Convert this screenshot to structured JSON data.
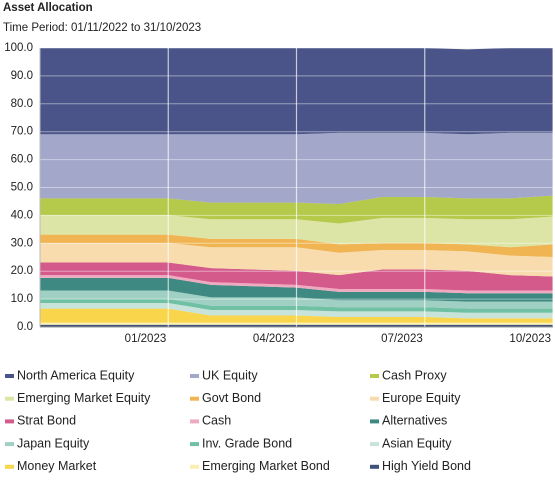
{
  "chart_data": {
    "type": "area",
    "stacked": true,
    "title": "Asset Allocation",
    "subtitle": "Time Period: 01/11/2022 to 31/10/2023",
    "categories": [
      null,
      null,
      null,
      "01/2023",
      null,
      null,
      "04/2023",
      null,
      null,
      "07/2023",
      null,
      null,
      "10/2023"
    ],
    "ylim": [
      0,
      100
    ],
    "yticks": [
      {
        "value": 0,
        "label": "0.0"
      },
      {
        "value": 10,
        "label": "10.0"
      },
      {
        "value": 20,
        "label": "20.0"
      },
      {
        "value": 30,
        "label": "30.0"
      },
      {
        "value": 40,
        "label": "40.0"
      },
      {
        "value": 50,
        "label": "50.0"
      },
      {
        "value": 60,
        "label": "60.0"
      },
      {
        "value": 70,
        "label": "70.0"
      },
      {
        "value": 80,
        "label": "80.0"
      },
      {
        "value": 90,
        "label": "90.0"
      },
      {
        "value": 100,
        "label": "100.0"
      }
    ],
    "grid": true,
    "series": [
      {
        "name": "North America Equity",
        "color": "#4a5488",
        "values": [
          30.9,
          30.9,
          30.9,
          30.9,
          30.9,
          30.9,
          30.9,
          30.4,
          30.4,
          30.4,
          30.4,
          30.4,
          30.4
        ]
      },
      {
        "name": "UK Equity",
        "color": "#a3a7c9",
        "values": [
          23,
          23,
          23,
          23,
          24.5,
          24.5,
          24.5,
          25.5,
          23,
          23,
          23,
          23.5,
          22.5
        ]
      },
      {
        "name": "Cash Proxy",
        "color": "#b5c94a",
        "values": [
          6,
          6,
          6,
          6,
          6,
          6,
          6,
          7,
          7.5,
          7.5,
          7.5,
          7.5,
          7.5
        ]
      },
      {
        "name": "Emerging Market Equity",
        "color": "#dde5a6",
        "values": [
          7,
          7,
          7,
          7,
          7,
          7,
          7,
          7.5,
          9,
          9,
          9,
          10,
          10
        ]
      },
      {
        "name": "Govt Bond",
        "color": "#f0b552",
        "values": [
          3,
          3,
          3,
          3,
          3,
          3,
          3,
          3,
          2.5,
          2.5,
          2.5,
          3,
          4.5
        ]
      },
      {
        "name": "Europe Equity",
        "color": "#f8dcae",
        "values": [
          7,
          7,
          7,
          7,
          7.5,
          8,
          8.5,
          8,
          7,
          7,
          7,
          7,
          7
        ]
      },
      {
        "name": "Strat Bond",
        "color": "#d45a8b",
        "values": [
          4.5,
          4.5,
          4.5,
          4.5,
          5,
          5,
          5,
          5,
          7,
          7,
          7,
          5.5,
          5
        ]
      },
      {
        "name": "Cash",
        "color": "#efaac0",
        "values": [
          1,
          1,
          1,
          1,
          1,
          1,
          1,
          1,
          1,
          1,
          1,
          1,
          1
        ]
      },
      {
        "name": "Alternatives",
        "color": "#3e8a82",
        "values": [
          4.5,
          4.5,
          4.5,
          4.5,
          4.5,
          4,
          3.5,
          3,
          3,
          3,
          3,
          3,
          3
        ]
      },
      {
        "name": "Japan Equity",
        "color": "#9fd0c3",
        "values": [
          3,
          3,
          3,
          3,
          3,
          3,
          3,
          2.5,
          2.5,
          2.5,
          2.5,
          2.5,
          2.5
        ]
      },
      {
        "name": "Inv. Grade Bond",
        "color": "#70c0a4",
        "values": [
          1.5,
          1.5,
          1.5,
          1.5,
          1.5,
          1.5,
          1.5,
          1.5,
          1.5,
          1.5,
          1.5,
          1.5,
          1.5
        ]
      },
      {
        "name": "Asian Equity",
        "color": "#c8e3da",
        "values": [
          2,
          2,
          2,
          2,
          2,
          2,
          2,
          2,
          2,
          2,
          2,
          2,
          2
        ]
      },
      {
        "name": "Money Market",
        "color": "#f8d54a",
        "values": [
          5,
          5,
          5,
          5,
          2.5,
          2.5,
          2.5,
          2,
          2,
          2,
          1.5,
          1.5,
          1.5
        ]
      },
      {
        "name": "Emerging Market Bond",
        "color": "#fbefb0",
        "values": [
          0.8,
          0.8,
          0.8,
          0.8,
          0.8,
          0.8,
          0.8,
          0.8,
          0.8,
          0.8,
          0.8,
          0.8,
          0.8
        ]
      },
      {
        "name": "High Yield Bond",
        "color": "#3e527a",
        "values": [
          0.8,
          0.8,
          0.8,
          0.8,
          0.8,
          0.8,
          0.8,
          0.8,
          0.8,
          0.8,
          0.8,
          0.8,
          0.8
        ]
      }
    ]
  }
}
